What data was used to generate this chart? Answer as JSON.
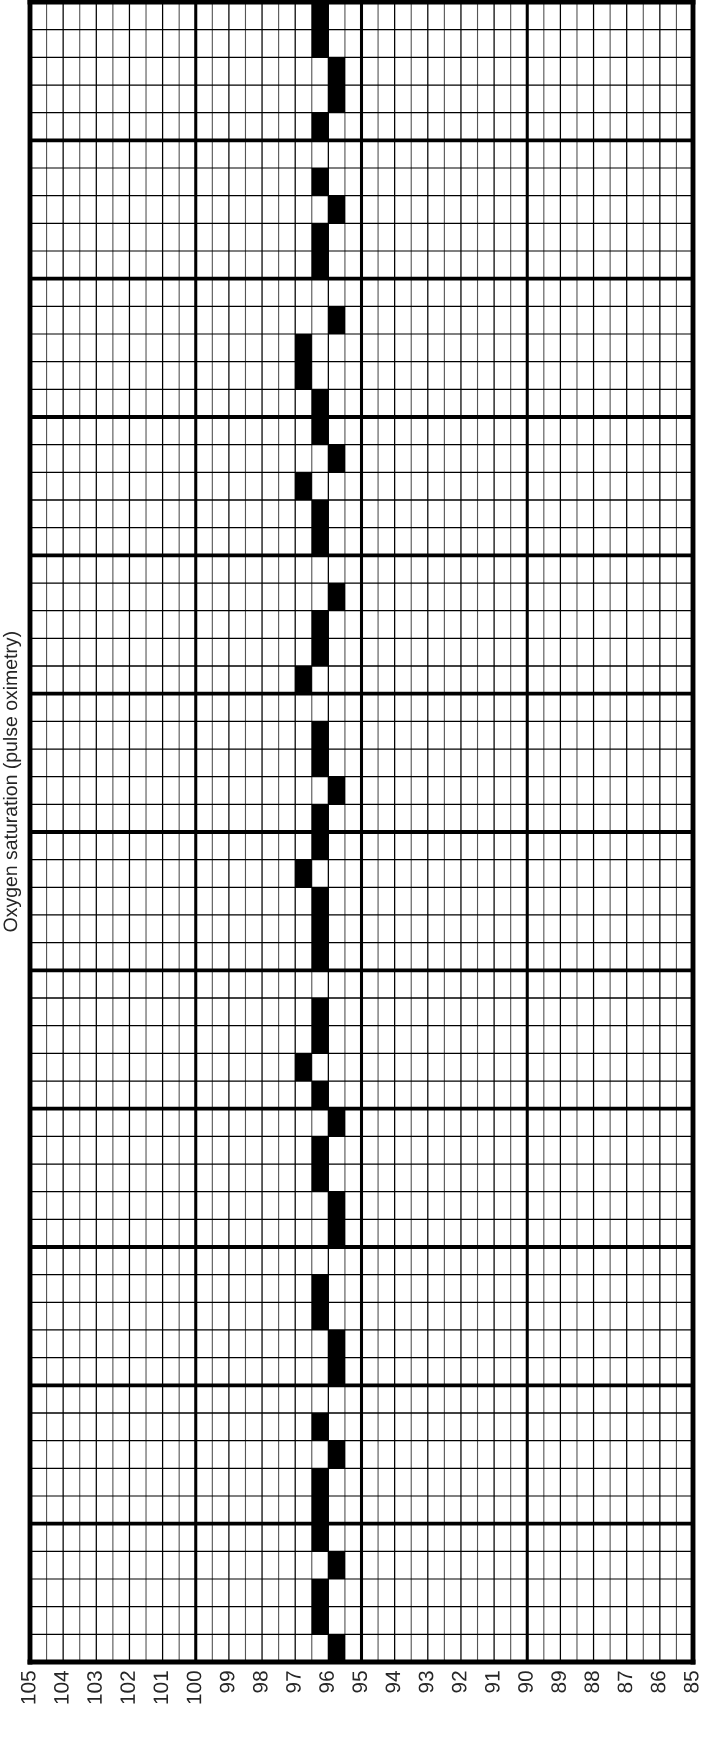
{
  "chart_data": {
    "type": "scatter",
    "orientation": "horizontal",
    "title": "Oxygen saturation (pulse oximetry)",
    "categories": [
      null,
      null,
      null,
      null,
      null,
      null,
      null,
      null,
      null,
      null,
      null,
      null,
      null,
      null,
      null,
      null,
      null,
      null,
      null,
      null,
      null,
      null,
      null,
      null,
      null,
      null,
      null,
      null,
      null,
      null,
      null,
      null,
      null,
      null,
      null,
      null,
      null,
      null,
      null,
      null,
      null,
      null,
      null,
      null,
      null,
      null,
      null,
      null,
      null,
      null,
      null,
      null,
      null,
      null,
      null,
      null,
      null,
      null,
      null,
      null
    ],
    "series": [
      {
        "color": "#000000",
        "values": [
          96.25,
          96.25,
          95.75,
          95.75,
          96.25,
          null,
          96.25,
          95.75,
          96.25,
          96.25,
          null,
          95.75,
          96.75,
          96.75,
          96.25,
          96.25,
          95.75,
          96.75,
          96.25,
          96.25,
          null,
          95.75,
          96.25,
          96.25,
          96.75,
          null,
          96.25,
          96.25,
          95.75,
          96.25,
          96.25,
          96.75,
          96.25,
          96.25,
          96.25,
          null,
          96.25,
          96.25,
          96.75,
          96.25,
          95.75,
          96.25,
          96.25,
          95.75,
          95.75,
          null,
          96.25,
          96.25,
          95.75,
          95.75,
          null,
          96.25,
          95.75,
          96.25,
          96.25,
          96.25,
          95.75,
          96.25,
          96.25,
          95.75
        ]
      }
    ],
    "xlim": [
      105,
      85
    ],
    "xticks": [
      105,
      104,
      103,
      102,
      101,
      100,
      99,
      98,
      97,
      96,
      95,
      94,
      93,
      92,
      91,
      90,
      89,
      88,
      87,
      86,
      85
    ],
    "grid": true,
    "marker": "square"
  }
}
